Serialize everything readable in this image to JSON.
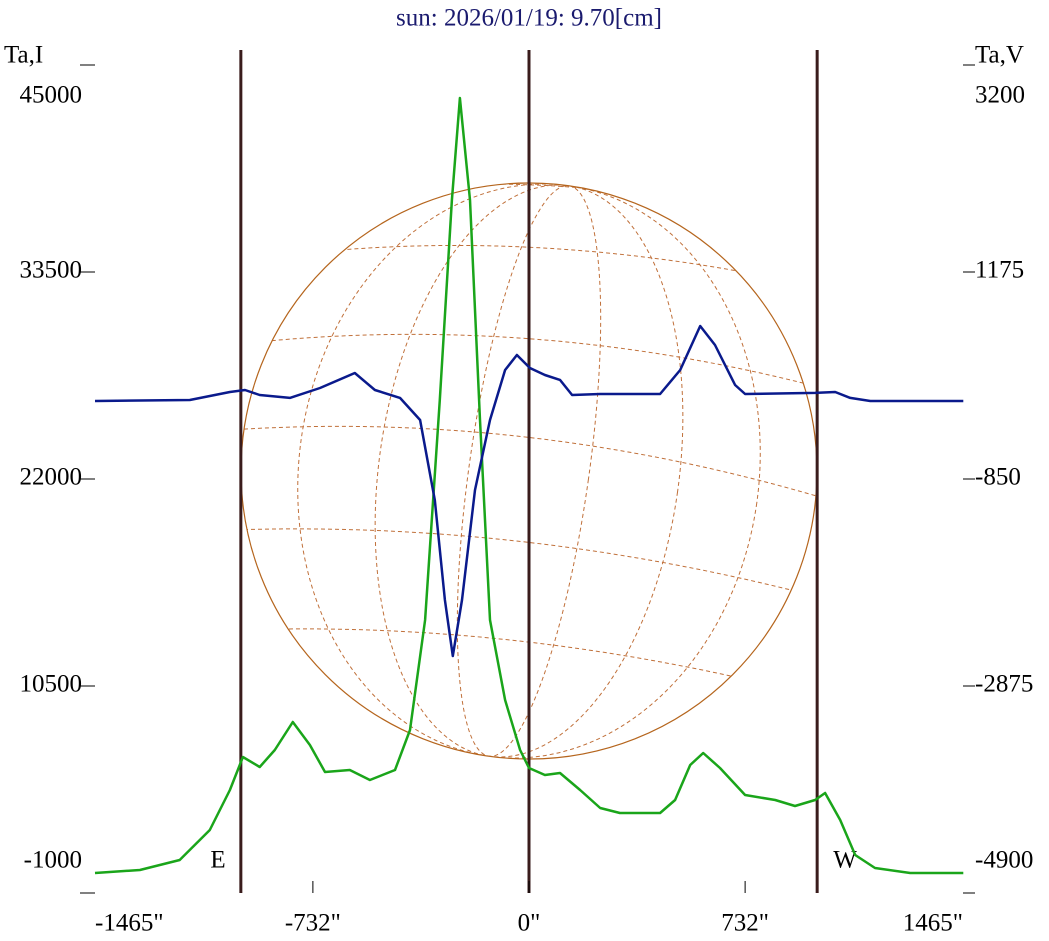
{
  "chart_data": {
    "type": "line",
    "title": "sun: 2026/01/19: 9.70[cm]",
    "ylabel": "Ta,I",
    "y2label": "Ta,V",
    "annotations": [
      "E",
      "W"
    ],
    "xlim": [
      -1470,
      1470
    ],
    "xticks": [
      {
        "value": -1465,
        "label": "-1465\""
      },
      {
        "value": -732,
        "label": "-732\""
      },
      {
        "value": 0,
        "label": "0\""
      },
      {
        "value": 732,
        "label": "732\""
      },
      {
        "value": 1465,
        "label": "1465\""
      }
    ],
    "ylim": [
      -1000,
      45000
    ],
    "yticks": [
      -1000,
      10500,
      22000,
      33500,
      45000
    ],
    "y2lim": [
      -4900,
      3200
    ],
    "y2ticks": [
      -4900,
      -2875,
      -850,
      1175,
      3200
    ],
    "vlines": [
      -976,
      0,
      976
    ],
    "series": [
      {
        "name": "Ta,I",
        "color": "#1aa51a",
        "x": [
          -1470,
          -1318,
          -1183,
          -1081,
          -1013,
          -969,
          -912,
          -861,
          -800,
          -742,
          -691,
          -607,
          -539,
          -454,
          -403,
          -352,
          -302,
          -261,
          -234,
          -200,
          -166,
          -132,
          -81,
          -30,
          0,
          54,
          105,
          173,
          241,
          308,
          444,
          495,
          546,
          590,
          647,
          732,
          834,
          901,
          969,
          1003,
          1054,
          1105,
          1172,
          1291,
          1471
        ],
        "values": [
          111,
          278,
          833,
          2500,
          4722,
          6556,
          6000,
          6944,
          8500,
          7222,
          5722,
          5833,
          5278,
          5833,
          8056,
          14167,
          26389,
          37500,
          43167,
          37500,
          25278,
          14167,
          9722,
          6944,
          5944,
          5556,
          5667,
          4722,
          3722,
          3444,
          3444,
          4167,
          6111,
          6778,
          5944,
          4444,
          4167,
          3833,
          4167,
          4556,
          3056,
          1111,
          389,
          111,
          111
        ]
      },
      {
        "name": "Ta,V",
        "color": "#0a1a8c",
        "axis": "y2",
        "x": [
          -1470,
          -1149,
          -1013,
          -962,
          -912,
          -810,
          -708,
          -590,
          -522,
          -437,
          -369,
          -319,
          -285,
          -258,
          -227,
          -183,
          -132,
          -81,
          -41,
          3,
          54,
          105,
          146,
          241,
          444,
          512,
          580,
          630,
          698,
          732,
          969,
          1037,
          1088,
          1156,
          1471
        ],
        "values": [
          -87,
          -77,
          1,
          21,
          -28,
          -57,
          40,
          187,
          21,
          -57,
          -273,
          -1055,
          -2034,
          -2582,
          -2034,
          -958,
          -273,
          216,
          363,
          236,
          167,
          119,
          -28,
          -18,
          -18,
          216,
          647,
          461,
          70,
          -18,
          -8,
          1,
          -57,
          -87,
          -87
        ]
      }
    ]
  }
}
